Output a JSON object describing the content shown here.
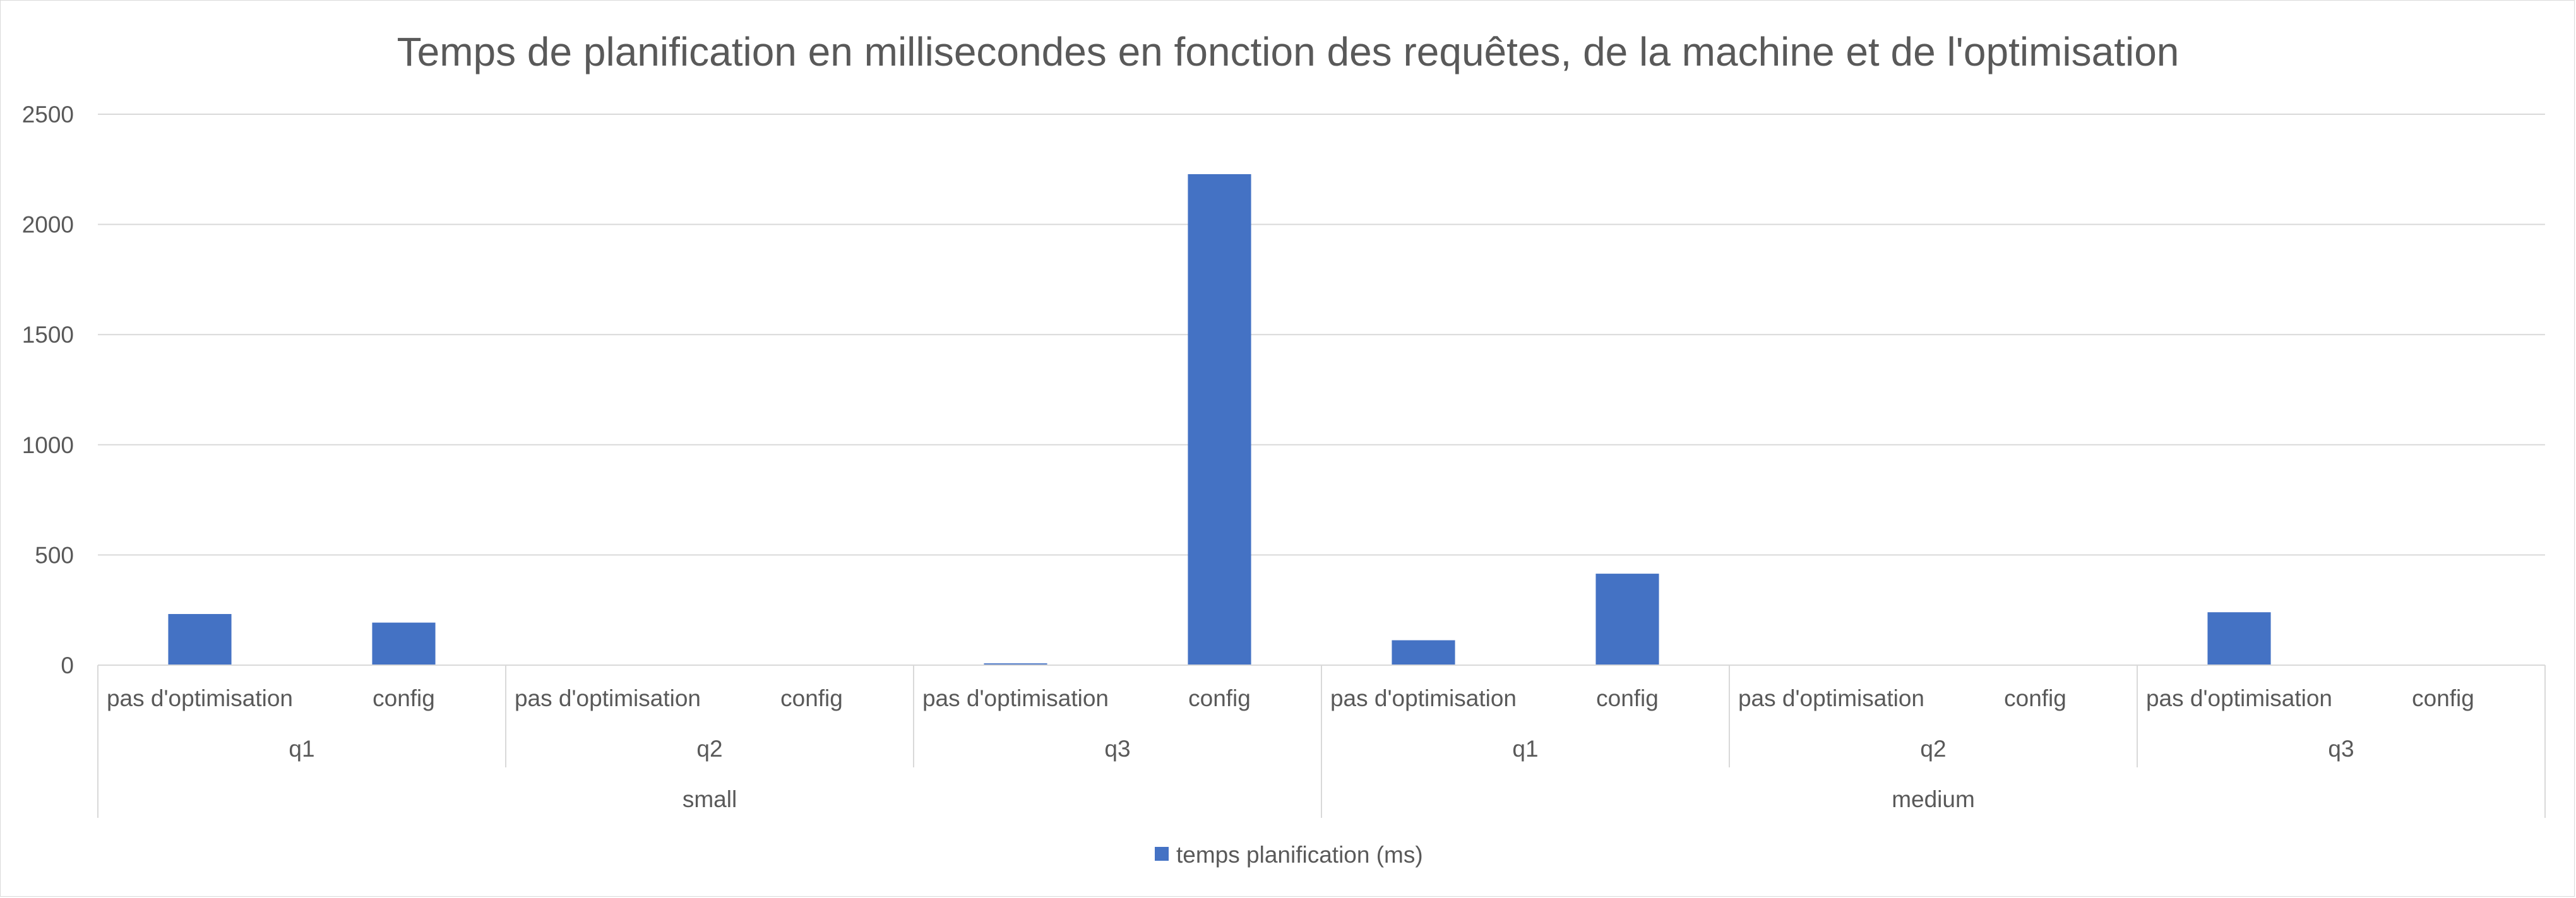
{
  "chart_data": {
    "type": "bar",
    "title": "Temps de planification en millisecondes en fonction des requêtes, de la machine et de l'optimisation",
    "xlabel": "",
    "ylabel": "",
    "ylim": [
      0,
      2500
    ],
    "yticks": [
      0,
      500,
      1000,
      1500,
      2000,
      2500
    ],
    "grid": true,
    "legend_position": "bottom",
    "bar_color": "#4472c4",
    "category_levels": {
      "machines": [
        {
          "label": "small",
          "queries": [
            {
              "label": "q1",
              "options": [
                "pas d'optimisation",
                "config"
              ]
            },
            {
              "label": "q2",
              "options": [
                "pas d'optimisation",
                "config"
              ]
            },
            {
              "label": "q3",
              "options": [
                "pas d'optimisation",
                "config"
              ]
            }
          ]
        },
        {
          "label": "medium",
          "queries": [
            {
              "label": "q1",
              "options": [
                "pas d'optimisation",
                "config"
              ]
            },
            {
              "label": "q2",
              "options": [
                "pas d'optimisation",
                "config"
              ]
            },
            {
              "label": "q3",
              "options": [
                "pas d'optimisation",
                "config"
              ]
            }
          ]
        }
      ]
    },
    "series": [
      {
        "name": "temps planification (ms)",
        "values": [
          232,
          193,
          0,
          0,
          8,
          2228,
          113,
          415,
          0,
          0,
          240,
          0
        ]
      }
    ]
  }
}
